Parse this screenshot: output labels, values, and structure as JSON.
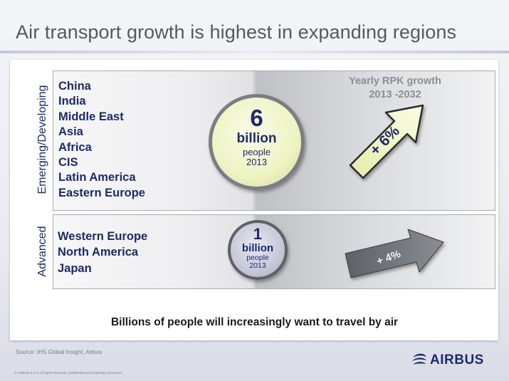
{
  "title": "Air transport growth is highest in expanding regions",
  "emerging": {
    "label": "Emerging/Developing",
    "regions": [
      "China",
      "India",
      "Middle East",
      "Asia",
      "Africa",
      "CIS",
      "Latin America",
      "Eastern Europe"
    ],
    "population": {
      "value": "6",
      "unit": "billion",
      "line1": "people",
      "line2": "2013"
    },
    "growth": "+ 6%"
  },
  "advanced": {
    "label": "Advanced",
    "regions": [
      "Western Europe",
      "North America",
      "Japan"
    ],
    "population": {
      "value": "1",
      "unit": "billion",
      "line1": "people",
      "line2": "2013"
    },
    "growth": "+ 4%"
  },
  "growth_header": {
    "line1": "Yearly RPK growth",
    "line2": "2013 -2032"
  },
  "tagline": "Billions of people will increasingly want to travel by air",
  "source": "Source: IHS Global Insight, Airbus",
  "copyright": "© AIRBUS S.A.S. All rights reserved. Confidential and proprietary document.",
  "logo": {
    "text": "AIRBUS",
    "icon": "airbus-swirl-icon"
  },
  "colors": {
    "navy": "#1d2a6a",
    "arrow_green": "#f2f6c0",
    "arrow_gray": "#6d6f76"
  }
}
